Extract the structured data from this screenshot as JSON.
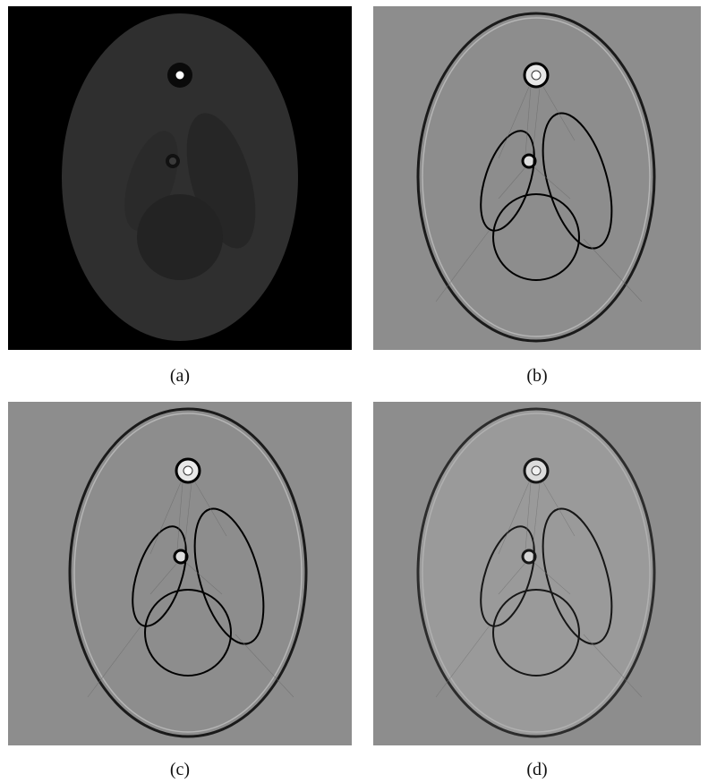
{
  "figure": {
    "captions": [
      "(a)",
      "(b)",
      "(c)",
      "(d)"
    ]
  }
}
